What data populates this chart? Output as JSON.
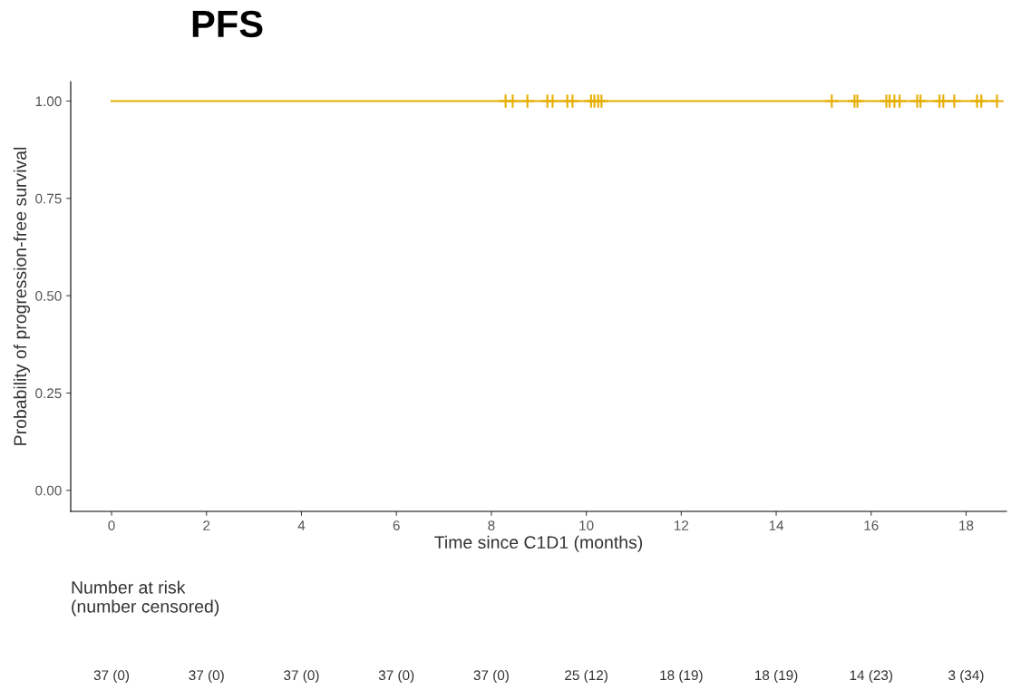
{
  "chart_data": {
    "type": "step",
    "title": "PFS",
    "xlabel": "Time since C1D1 (months)",
    "ylabel": "Probability of progression-free survival",
    "xlim": [
      -0.86,
      18.85
    ],
    "ylim": [
      -0.054,
      1.05
    ],
    "xticks": [
      0,
      2,
      4,
      6,
      8,
      10,
      12,
      14,
      16,
      18
    ],
    "yticks": [
      {
        "value": 0,
        "label": "0.00"
      },
      {
        "value": 0.25,
        "label": "0.25"
      },
      {
        "value": 0.5,
        "label": "0.50"
      },
      {
        "value": 0.75,
        "label": "0.75"
      },
      {
        "value": 1,
        "label": "1.00"
      }
    ],
    "grid": false,
    "legend": false,
    "series": [
      {
        "color": "#e6ad00",
        "x": [
          0,
          18.65
        ],
        "values": [
          1,
          1
        ],
        "marker": "none"
      },
      {
        "type": "scatter",
        "color": "#e6ad00",
        "marker": "cross",
        "x": [
          8.3,
          8.45,
          8.76,
          9.18,
          9.29,
          9.6,
          9.71,
          10.1,
          10.17,
          10.25,
          10.32,
          15.17,
          15.65,
          15.71,
          16.32,
          16.39,
          16.49,
          16.6,
          16.97,
          17.04,
          17.44,
          17.52,
          17.75,
          18.23,
          18.32,
          18.65
        ],
        "values": [
          1,
          1,
          1,
          1,
          1,
          1,
          1,
          1,
          1,
          1,
          1,
          1,
          1,
          1,
          1,
          1,
          1,
          1,
          1,
          1,
          1,
          1,
          1,
          1,
          1,
          1
        ]
      }
    ],
    "annotations": [
      "Number at risk\n(number censored)",
      "37 (0)",
      "37 (0)",
      "37 (0)",
      "37 (0)",
      "37 (0)",
      "25 (12)",
      "18 (19)",
      "18 (19)",
      "14 (23)",
      "3 (34)"
    ]
  }
}
